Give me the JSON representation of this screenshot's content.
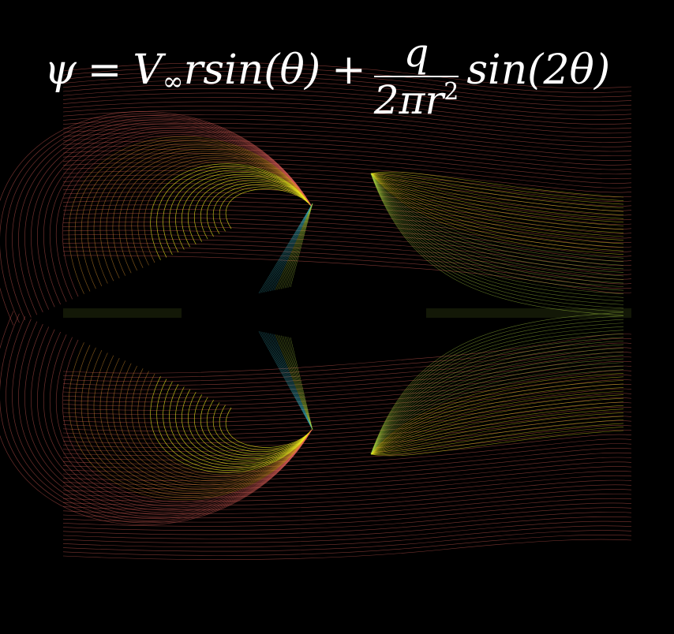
{
  "equation": {
    "psi": "ψ",
    "equals": "=",
    "v": "V",
    "v_sub": "∞",
    "term1": "rsin(θ)",
    "plus": "+",
    "numerator": "q",
    "denominator_base": "2πr",
    "denominator_exp": "2",
    "term2": "sin(2θ)"
  },
  "colors": {
    "background": "#000000",
    "outer": "#e0605a",
    "mid_orange": "#f0a030",
    "inner_yellow": "#f4f020",
    "green": "#a8d040",
    "teal": "#3ab0c0"
  }
}
